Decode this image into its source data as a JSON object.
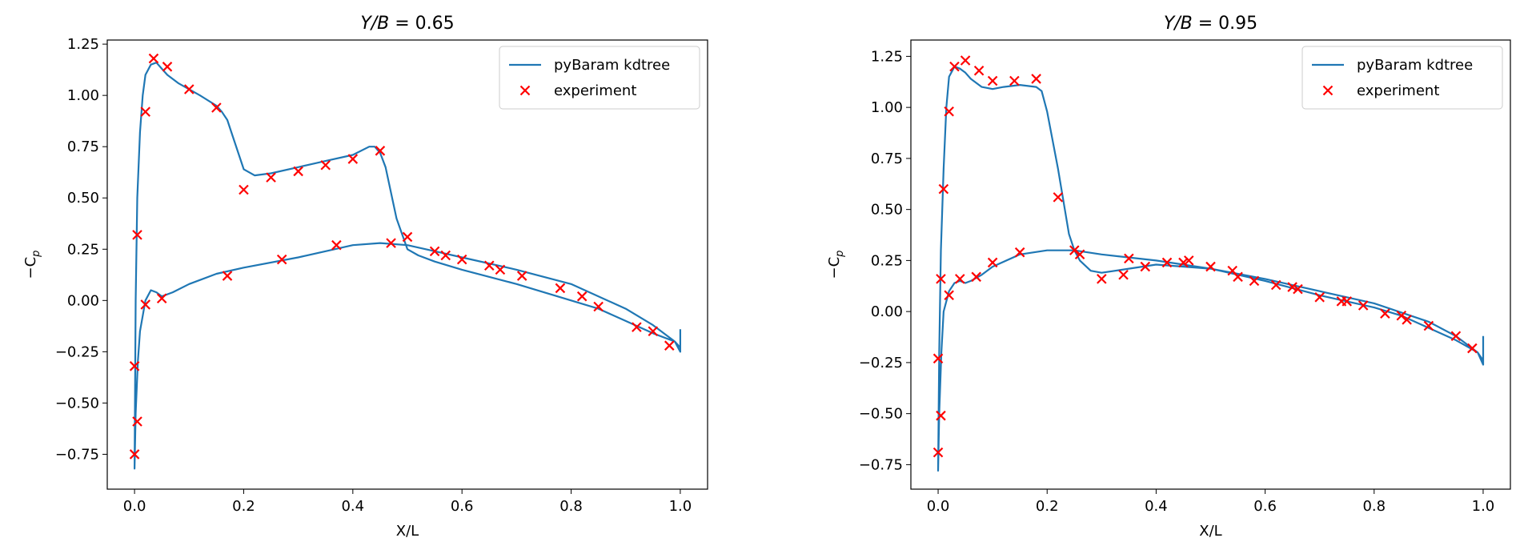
{
  "chart_data": [
    {
      "type": "line",
      "title_prefix": "Y/B",
      "title_value": "= 0.65",
      "xlabel": "X/L",
      "ylabel_prefix": "−C",
      "ylabel_sub": "p",
      "xlim": [
        -0.05,
        1.05
      ],
      "ylim": [
        -0.92,
        1.27
      ],
      "xticks": [
        0.0,
        0.2,
        0.4,
        0.6,
        0.8,
        1.0
      ],
      "xtick_labels": [
        "0.0",
        "0.2",
        "0.4",
        "0.6",
        "0.8",
        "1.0"
      ],
      "yticks": [
        -0.75,
        -0.5,
        -0.25,
        0.0,
        0.25,
        0.5,
        0.75,
        1.0,
        1.25
      ],
      "ytick_labels": [
        "−0.75",
        "−0.50",
        "−0.25",
        "0.00",
        "0.25",
        "0.50",
        "0.75",
        "1.00",
        "1.25"
      ],
      "legend_position": "top-right",
      "grid": false,
      "series": [
        {
          "name": "pyBaram kdtree",
          "kind": "line",
          "color": "#1f77b4",
          "x": [
            1.0,
            0.99,
            0.95,
            0.9,
            0.85,
            0.8,
            0.7,
            0.6,
            0.55,
            0.52,
            0.5,
            0.48,
            0.46,
            0.45,
            0.44,
            0.43,
            0.4,
            0.35,
            0.3,
            0.25,
            0.22,
            0.2,
            0.18,
            0.17,
            0.16,
            0.15,
            0.12,
            0.08,
            0.06,
            0.05,
            0.04,
            0.03,
            0.02,
            0.015,
            0.01,
            0.005,
            0.002,
            0.0,
            0.002,
            0.006,
            0.01,
            0.02,
            0.03,
            0.04,
            0.05,
            0.07,
            0.1,
            0.15,
            0.2,
            0.3,
            0.4,
            0.45,
            0.5,
            0.55,
            0.6,
            0.7,
            0.8,
            0.9,
            0.95,
            0.99,
            1.0,
            1.0
          ],
          "y": [
            -0.23,
            -0.2,
            -0.16,
            -0.1,
            -0.04,
            0.0,
            0.08,
            0.15,
            0.19,
            0.22,
            0.25,
            0.4,
            0.65,
            0.72,
            0.75,
            0.75,
            0.71,
            0.68,
            0.65,
            0.62,
            0.61,
            0.64,
            0.8,
            0.88,
            0.92,
            0.95,
            1.0,
            1.06,
            1.1,
            1.13,
            1.16,
            1.15,
            1.1,
            1.0,
            0.82,
            0.5,
            0.0,
            -0.82,
            -0.55,
            -0.3,
            -0.15,
            0.0,
            0.05,
            0.04,
            0.02,
            0.04,
            0.08,
            0.13,
            0.16,
            0.21,
            0.27,
            0.28,
            0.27,
            0.24,
            0.21,
            0.15,
            0.08,
            -0.04,
            -0.12,
            -0.2,
            -0.25,
            -0.14
          ]
        },
        {
          "name": "experiment",
          "kind": "scatter",
          "color": "#ff0000",
          "marker": "x",
          "x": [
            0.035,
            0.06,
            0.1,
            0.15,
            0.02,
            0.005,
            0.0,
            0.005,
            0.0,
            0.2,
            0.25,
            0.3,
            0.35,
            0.4,
            0.45,
            0.02,
            0.05,
            0.17,
            0.27,
            0.37,
            0.47,
            0.5,
            0.55,
            0.57,
            0.6,
            0.65,
            0.67,
            0.71,
            0.78,
            0.82,
            0.85,
            0.92,
            0.95,
            0.98
          ],
          "y": [
            1.18,
            1.14,
            1.03,
            0.94,
            0.92,
            0.32,
            -0.32,
            -0.59,
            -0.75,
            0.54,
            0.6,
            0.63,
            0.66,
            0.69,
            0.73,
            -0.02,
            0.01,
            0.12,
            0.2,
            0.27,
            0.28,
            0.31,
            0.24,
            0.22,
            0.2,
            0.17,
            0.15,
            0.12,
            0.06,
            0.02,
            -0.03,
            -0.13,
            -0.15,
            -0.22
          ]
        }
      ]
    },
    {
      "type": "line",
      "title_prefix": "Y/B",
      "title_value": "= 0.95",
      "xlabel": "X/L",
      "ylabel_prefix": "−C",
      "ylabel_sub": "p",
      "xlim": [
        -0.05,
        1.05
      ],
      "ylim": [
        -0.87,
        1.33
      ],
      "xticks": [
        0.0,
        0.2,
        0.4,
        0.6,
        0.8,
        1.0
      ],
      "xtick_labels": [
        "0.0",
        "0.2",
        "0.4",
        "0.6",
        "0.8",
        "1.0"
      ],
      "yticks": [
        -0.75,
        -0.5,
        -0.25,
        0.0,
        0.25,
        0.5,
        0.75,
        1.0,
        1.25
      ],
      "ytick_labels": [
        "−0.75",
        "−0.50",
        "−0.25",
        "0.00",
        "0.25",
        "0.50",
        "0.75",
        "1.00",
        "1.25"
      ],
      "legend_position": "top-right",
      "grid": false,
      "series": [
        {
          "name": "pyBaram kdtree",
          "kind": "line",
          "color": "#1f77b4",
          "x": [
            1.0,
            0.99,
            0.95,
            0.9,
            0.85,
            0.8,
            0.7,
            0.6,
            0.5,
            0.4,
            0.35,
            0.3,
            0.28,
            0.26,
            0.25,
            0.24,
            0.22,
            0.2,
            0.19,
            0.18,
            0.15,
            0.12,
            0.1,
            0.08,
            0.06,
            0.05,
            0.04,
            0.03,
            0.02,
            0.015,
            0.01,
            0.005,
            0.002,
            0.0,
            0.002,
            0.006,
            0.01,
            0.02,
            0.03,
            0.04,
            0.05,
            0.06,
            0.08,
            0.1,
            0.15,
            0.2,
            0.25,
            0.3,
            0.4,
            0.5,
            0.6,
            0.7,
            0.8,
            0.9,
            0.95,
            0.99,
            1.0,
            1.0
          ],
          "y": [
            -0.24,
            -0.2,
            -0.14,
            -0.08,
            -0.02,
            0.02,
            0.08,
            0.15,
            0.21,
            0.23,
            0.21,
            0.19,
            0.2,
            0.25,
            0.3,
            0.38,
            0.7,
            0.98,
            1.08,
            1.1,
            1.11,
            1.1,
            1.09,
            1.1,
            1.14,
            1.17,
            1.19,
            1.2,
            1.15,
            1.0,
            0.7,
            0.3,
            -0.2,
            -0.78,
            -0.5,
            -0.2,
            0.0,
            0.1,
            0.14,
            0.15,
            0.14,
            0.15,
            0.18,
            0.22,
            0.28,
            0.3,
            0.3,
            0.28,
            0.25,
            0.21,
            0.16,
            0.1,
            0.04,
            -0.05,
            -0.12,
            -0.2,
            -0.26,
            -0.12
          ]
        },
        {
          "name": "experiment",
          "kind": "scatter",
          "color": "#ff0000",
          "marker": "x",
          "x": [
            0.03,
            0.05,
            0.075,
            0.1,
            0.14,
            0.18,
            0.02,
            0.01,
            0.005,
            0.0,
            0.005,
            0.0,
            0.22,
            0.25,
            0.26,
            0.3,
            0.34,
            0.35,
            0.38,
            0.42,
            0.45,
            0.46,
            0.5,
            0.54,
            0.55,
            0.58,
            0.62,
            0.65,
            0.66,
            0.7,
            0.74,
            0.75,
            0.78,
            0.82,
            0.85,
            0.86,
            0.9,
            0.95,
            0.98,
            0.02,
            0.04,
            0.07,
            0.1,
            0.15
          ],
          "y": [
            1.2,
            1.23,
            1.18,
            1.13,
            1.13,
            1.14,
            0.98,
            0.6,
            0.16,
            -0.23,
            -0.51,
            -0.69,
            0.56,
            0.3,
            0.28,
            0.16,
            0.18,
            0.26,
            0.22,
            0.24,
            0.24,
            0.25,
            0.22,
            0.2,
            0.17,
            0.15,
            0.13,
            0.12,
            0.11,
            0.07,
            0.05,
            0.05,
            0.03,
            -0.01,
            -0.02,
            -0.04,
            -0.07,
            -0.12,
            -0.18,
            0.08,
            0.16,
            0.17,
            0.24,
            0.29
          ]
        }
      ]
    }
  ]
}
